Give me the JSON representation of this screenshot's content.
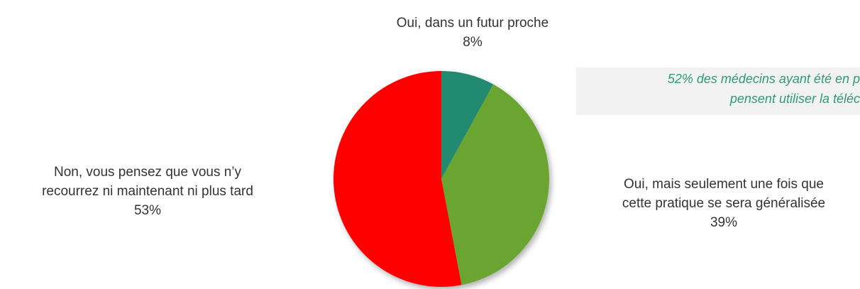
{
  "chart_data": {
    "type": "pie",
    "categories": [
      [
        "Oui, dans un futur proche"
      ],
      [
        "Oui, mais seulement une fois que",
        "cette pratique se sera généralisée"
      ],
      [
        "Non, vous pensez que vous n’y",
        "recourrez ni maintenant ni plus tard"
      ]
    ],
    "values": [
      8,
      39,
      53
    ],
    "value_labels": [
      "8%",
      "39%",
      "53%"
    ],
    "colors": [
      "#228a70",
      "#6aa533",
      "#ff0000"
    ],
    "annotation": [
      "52% des médecins ayant été en p",
      "pensent utiliser la téléc"
    ]
  }
}
